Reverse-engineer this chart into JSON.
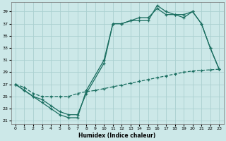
{
  "xlabel": "Humidex (Indice chaleur)",
  "background_color": "#cce8e8",
  "grid_color": "#aad0d0",
  "line_color": "#1a6e60",
  "xlim": [
    -0.5,
    23.5
  ],
  "ylim": [
    20.5,
    40.5
  ],
  "yticks": [
    21,
    23,
    25,
    27,
    29,
    31,
    33,
    35,
    37,
    39
  ],
  "xticks": [
    0,
    1,
    2,
    3,
    4,
    5,
    6,
    7,
    8,
    9,
    10,
    11,
    12,
    13,
    14,
    15,
    16,
    17,
    18,
    19,
    20,
    21,
    22,
    23
  ],
  "line1_x": [
    0,
    1,
    2,
    3,
    4,
    5,
    6,
    7,
    8,
    10,
    11,
    12,
    13,
    14,
    15,
    16,
    17,
    18,
    19,
    20,
    21,
    22,
    23
  ],
  "line1_y": [
    27,
    26,
    25,
    24,
    23,
    22,
    21.5,
    21.5,
    26,
    31,
    37,
    37,
    37.5,
    37.5,
    37.5,
    40,
    39,
    38.5,
    38,
    39,
    37,
    33,
    29.5
  ],
  "line2_x": [
    0,
    1,
    2,
    3,
    4,
    5,
    6,
    7,
    8,
    10,
    11,
    12,
    13,
    14,
    15,
    16,
    17,
    18,
    19,
    20,
    21,
    22,
    23
  ],
  "line2_y": [
    27,
    26,
    25,
    24.5,
    23.5,
    22.5,
    22,
    22,
    25.5,
    30.5,
    37,
    37,
    37.5,
    38,
    38,
    39.5,
    38.5,
    38.5,
    38.5,
    39,
    37,
    33,
    29.5
  ],
  "line3_x": [
    0,
    1,
    2,
    3,
    4,
    5,
    6,
    7,
    8,
    9,
    10,
    11,
    12,
    13,
    14,
    15,
    16,
    17,
    18,
    19,
    20,
    21,
    22,
    23
  ],
  "line3_y": [
    27,
    26.5,
    25.5,
    25,
    25,
    25,
    25,
    25.5,
    25.8,
    26.0,
    26.3,
    26.6,
    26.9,
    27.2,
    27.5,
    27.8,
    28.1,
    28.4,
    28.7,
    29.0,
    29.2,
    29.3,
    29.4,
    29.5
  ]
}
